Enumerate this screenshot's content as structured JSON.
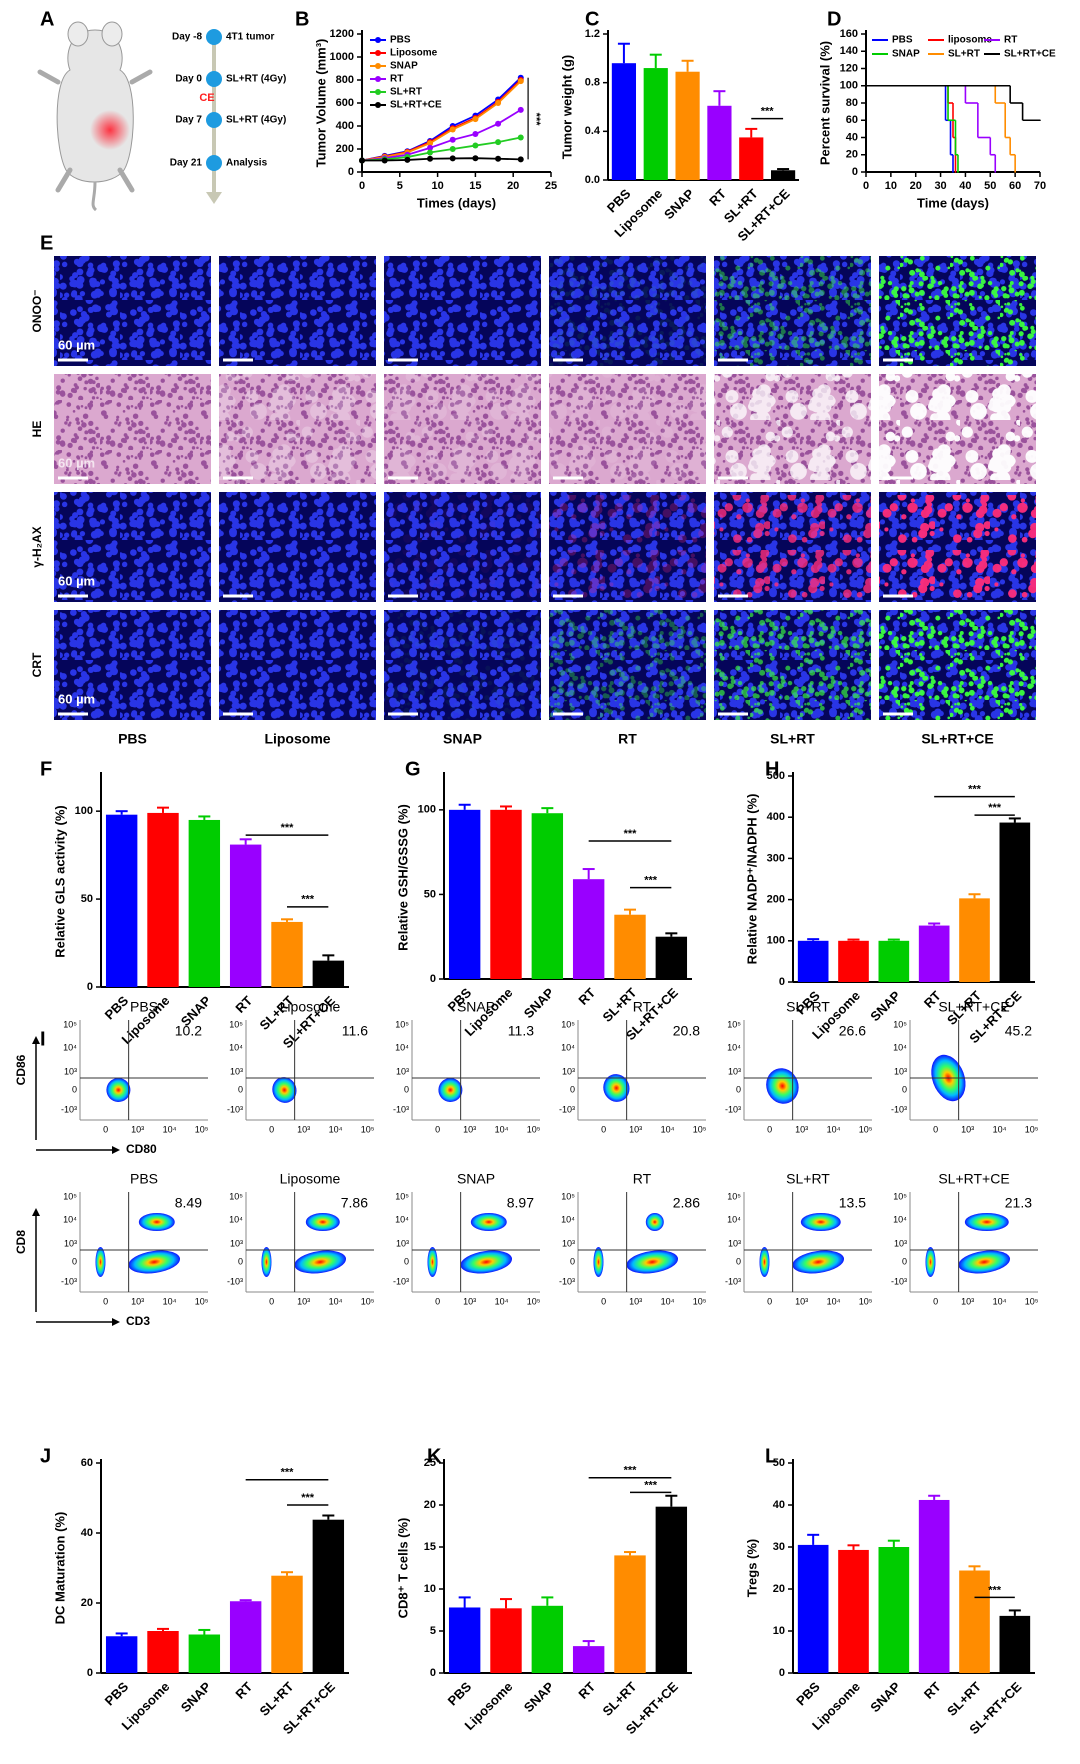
{
  "schematic": {
    "panel": "A",
    "events": [
      {
        "day": "Day -8",
        "label": "4T1 tumor"
      },
      {
        "day": "Day 0",
        "label": "SL+RT (4Gy)"
      },
      {
        "day": "Day 7",
        "label": "SL+RT (4Gy)"
      },
      {
        "day": "Day 21",
        "label": "Analysis"
      }
    ],
    "treatment": "CE"
  },
  "micrographs": {
    "panel": "E",
    "rows": [
      "ONOO⁻",
      "HE",
      "γ-H₂AX",
      "CRT"
    ],
    "columns": [
      "PBS",
      "Liposome",
      "SNAP",
      "RT",
      "SL+RT",
      "SL+RT+CE"
    ],
    "scale_bar": "60 µm"
  },
  "flow": {
    "panel": "I",
    "y_ticks": [
      "10⁵",
      "10⁴",
      "10³",
      "0",
      "-10³"
    ],
    "x_ticks": [
      "0",
      "10³",
      "10⁴",
      "10⁵"
    ],
    "rows": [
      {
        "y_label": "CD86",
        "x_label": "CD80",
        "samples": [
          {
            "name": "PBS",
            "percent": 10.2
          },
          {
            "name": "Liposome",
            "percent": 11.6
          },
          {
            "name": "SNAP",
            "percent": 11.3
          },
          {
            "name": "RT",
            "percent": 20.8
          },
          {
            "name": "SL+RT",
            "percent": 26.6
          },
          {
            "name": "SL+RT+CE",
            "percent": 45.2
          }
        ]
      },
      {
        "y_label": "CD8",
        "x_label": "CD3",
        "samples": [
          {
            "name": "PBS",
            "percent": 8.49
          },
          {
            "name": "Liposome",
            "percent": 7.86
          },
          {
            "name": "SNAP",
            "percent": 8.97
          },
          {
            "name": "RT",
            "percent": 2.86
          },
          {
            "name": "SL+RT",
            "percent": 13.5
          },
          {
            "name": "SL+RT+CE",
            "percent": 21.3
          }
        ]
      }
    ]
  },
  "chart_data": [
    {
      "panel": "B",
      "type": "line",
      "xlabel": "Times (days)",
      "ylabel": "Tumor Volume (mm³)",
      "legend": "upper left",
      "x": [
        0,
        3,
        6,
        9,
        12,
        15,
        18,
        21
      ],
      "xlim": [
        0,
        25
      ],
      "xticks": [
        0,
        5,
        10,
        15,
        20,
        25
      ],
      "ylim": [
        0,
        1200
      ],
      "yticks": [
        0,
        200,
        400,
        600,
        800,
        1000,
        1200
      ],
      "series": [
        {
          "name": "PBS",
          "color": "#0000ff",
          "values": [
            100,
            140,
            180,
            270,
            400,
            490,
            630,
            820
          ]
        },
        {
          "name": "Liposome",
          "color": "#ff0000",
          "values": [
            100,
            135,
            175,
            260,
            380,
            470,
            610,
            800
          ]
        },
        {
          "name": "SNAP",
          "color": "#ff8c00",
          "values": [
            100,
            130,
            170,
            250,
            370,
            460,
            600,
            790
          ]
        },
        {
          "name": "RT",
          "color": "#9900ff",
          "values": [
            100,
            120,
            150,
            210,
            280,
            330,
            420,
            540
          ]
        },
        {
          "name": "SL+RT",
          "color": "#22cc22",
          "values": [
            100,
            110,
            130,
            170,
            200,
            230,
            260,
            300
          ]
        },
        {
          "name": "SL+RT+CE",
          "color": "#000000",
          "values": [
            100,
            100,
            105,
            115,
            118,
            120,
            115,
            110
          ]
        }
      ],
      "annotations": [
        "***"
      ]
    },
    {
      "panel": "C",
      "type": "bar",
      "ylabel": "Tumor weight (g)",
      "categories": [
        "PBS",
        "Liposome",
        "SNAP",
        "RT",
        "SL+RT",
        "SL+RT+CE"
      ],
      "values": [
        0.96,
        0.92,
        0.89,
        0.61,
        0.35,
        0.08
      ],
      "errors": [
        0.16,
        0.11,
        0.09,
        0.12,
        0.07,
        0.01
      ],
      "colors": [
        "#0000ff",
        "#00cc00",
        "#ff8c00",
        "#9900ff",
        "#ff0000",
        "#000000"
      ],
      "ylim": [
        0,
        1.2
      ],
      "yticks": [
        {
          "value": 0,
          "label": "0.0"
        },
        0.4,
        0.8,
        1.2
      ],
      "annotations": [
        "***"
      ]
    },
    {
      "panel": "D",
      "type": "line",
      "step": true,
      "xlabel": "Time (days)",
      "ylabel": "Percent survival (%)",
      "legend": "top",
      "xlim": [
        0,
        70
      ],
      "xticks": [
        0,
        10,
        20,
        30,
        40,
        50,
        60,
        70
      ],
      "ylim": [
        0,
        160
      ],
      "yticks": [
        0,
        20,
        40,
        60,
        80,
        100,
        120,
        140,
        160
      ],
      "series": [
        {
          "name": "PBS",
          "color": "#0000ff",
          "x": [
            0,
            32,
            34,
            35
          ],
          "values": [
            100,
            60,
            20,
            0
          ]
        },
        {
          "name": "liposome",
          "color": "#ff0000",
          "x": [
            0,
            33,
            35,
            36
          ],
          "values": [
            100,
            80,
            40,
            0
          ]
        },
        {
          "name": "RT",
          "color": "#9900ff",
          "x": [
            0,
            40,
            45,
            50,
            52
          ],
          "values": [
            100,
            80,
            40,
            20,
            0
          ]
        },
        {
          "name": "SNAP",
          "color": "#00cc00",
          "x": [
            0,
            33,
            36,
            37
          ],
          "values": [
            100,
            60,
            20,
            0
          ]
        },
        {
          "name": "SL+RT",
          "color": "#ff8c00",
          "x": [
            0,
            52,
            56,
            58,
            60
          ],
          "values": [
            100,
            80,
            40,
            20,
            0
          ]
        },
        {
          "name": "SL+RT+CE",
          "color": "#000000",
          "x": [
            0,
            58,
            63,
            70
          ],
          "values": [
            100,
            80,
            60,
            60
          ]
        }
      ]
    },
    {
      "panel": "F",
      "type": "bar",
      "ylabel": "Relative GLS activity (%)",
      "categories": [
        "PBS",
        "Liposome",
        "SNAP",
        "RT",
        "SL+RT",
        "SL+RT+CE"
      ],
      "values": [
        98,
        99,
        95,
        81,
        37,
        15
      ],
      "errors": [
        2,
        3,
        2,
        3,
        1.5,
        3
      ],
      "colors": [
        "#0000ff",
        "#ff0000",
        "#00cc00",
        "#9900ff",
        "#ff8c00",
        "#000000"
      ],
      "ylim": [
        0,
        120
      ],
      "yticks": [
        0,
        50,
        100
      ],
      "annotations": [
        "***",
        "***"
      ]
    },
    {
      "panel": "G",
      "type": "bar",
      "ylabel": "Relative GSH/GSSG (%)",
      "categories": [
        "PBS",
        "Liposome",
        "SNAP",
        "RT",
        "SL+RT",
        "SL+RT+CE"
      ],
      "values": [
        100,
        100,
        98,
        59,
        38,
        25
      ],
      "errors": [
        3,
        2,
        3,
        6,
        3,
        2
      ],
      "colors": [
        "#0000ff",
        "#ff0000",
        "#00cc00",
        "#9900ff",
        "#ff8c00",
        "#000000"
      ],
      "ylim": [
        0,
        120
      ],
      "yticks": [
        0,
        50,
        100
      ],
      "annotations": [
        "***",
        "***"
      ]
    },
    {
      "panel": "H",
      "type": "bar",
      "ylabel": "Relative NADP⁺/NADPH (%)",
      "categories": [
        "PBS",
        "Liposome",
        "SNAP",
        "RT",
        "SL+RT",
        "SL+RT+CE"
      ],
      "values": [
        100,
        100,
        100,
        137,
        203,
        387
      ],
      "errors": [
        4,
        3,
        3,
        5,
        10,
        10
      ],
      "colors": [
        "#0000ff",
        "#ff0000",
        "#00cc00",
        "#9900ff",
        "#ff8c00",
        "#000000"
      ],
      "ylim": [
        0,
        500
      ],
      "yticks": [
        0,
        100,
        200,
        300,
        400,
        500
      ],
      "annotations": [
        "***",
        "***"
      ]
    },
    {
      "panel": "J",
      "type": "bar",
      "ylabel": "DC Maturation (%)",
      "categories": [
        "PBS",
        "Liposome",
        "SNAP",
        "RT",
        "SL+RT",
        "SL+RT+CE"
      ],
      "values": [
        10.5,
        12,
        11,
        20.5,
        27.8,
        43.8
      ],
      "errors": [
        0.8,
        0.6,
        1.3,
        0.3,
        1,
        1.2
      ],
      "colors": [
        "#0000ff",
        "#ff0000",
        "#00cc00",
        "#9900ff",
        "#ff8c00",
        "#000000"
      ],
      "ylim": [
        0,
        60
      ],
      "yticks": [
        0,
        20,
        40,
        60
      ],
      "annotations": [
        "***",
        "***"
      ]
    },
    {
      "panel": "K",
      "type": "bar",
      "ylabel": "CD8⁺ T cells (%)",
      "categories": [
        "PBS",
        "Liposome",
        "SNAP",
        "RT",
        "SL+RT",
        "SL+RT+CE"
      ],
      "values": [
        7.8,
        7.7,
        8,
        3.2,
        14,
        19.8
      ],
      "errors": [
        1.2,
        1.1,
        1,
        0.6,
        0.4,
        1.3
      ],
      "colors": [
        "#0000ff",
        "#ff0000",
        "#00cc00",
        "#9900ff",
        "#ff8c00",
        "#000000"
      ],
      "ylim": [
        0,
        25
      ],
      "yticks": [
        0,
        5,
        10,
        15,
        20,
        25
      ],
      "annotations": [
        "***",
        "***"
      ]
    },
    {
      "panel": "L",
      "type": "bar",
      "ylabel": "Tregs (%)",
      "categories": [
        "PBS",
        "Liposome",
        "SNAP",
        "RT",
        "SL+RT",
        "SL+RT+CE"
      ],
      "values": [
        30.5,
        29.3,
        30,
        41.2,
        24.4,
        13.6
      ],
      "errors": [
        2.4,
        1.1,
        1.5,
        1,
        1,
        1.3
      ],
      "colors": [
        "#0000ff",
        "#ff0000",
        "#00cc00",
        "#9900ff",
        "#ff8c00",
        "#000000"
      ],
      "ylim": [
        0,
        50
      ],
      "yticks": [
        0,
        10,
        20,
        30,
        40,
        50
      ],
      "annotations": [
        "***"
      ]
    }
  ]
}
